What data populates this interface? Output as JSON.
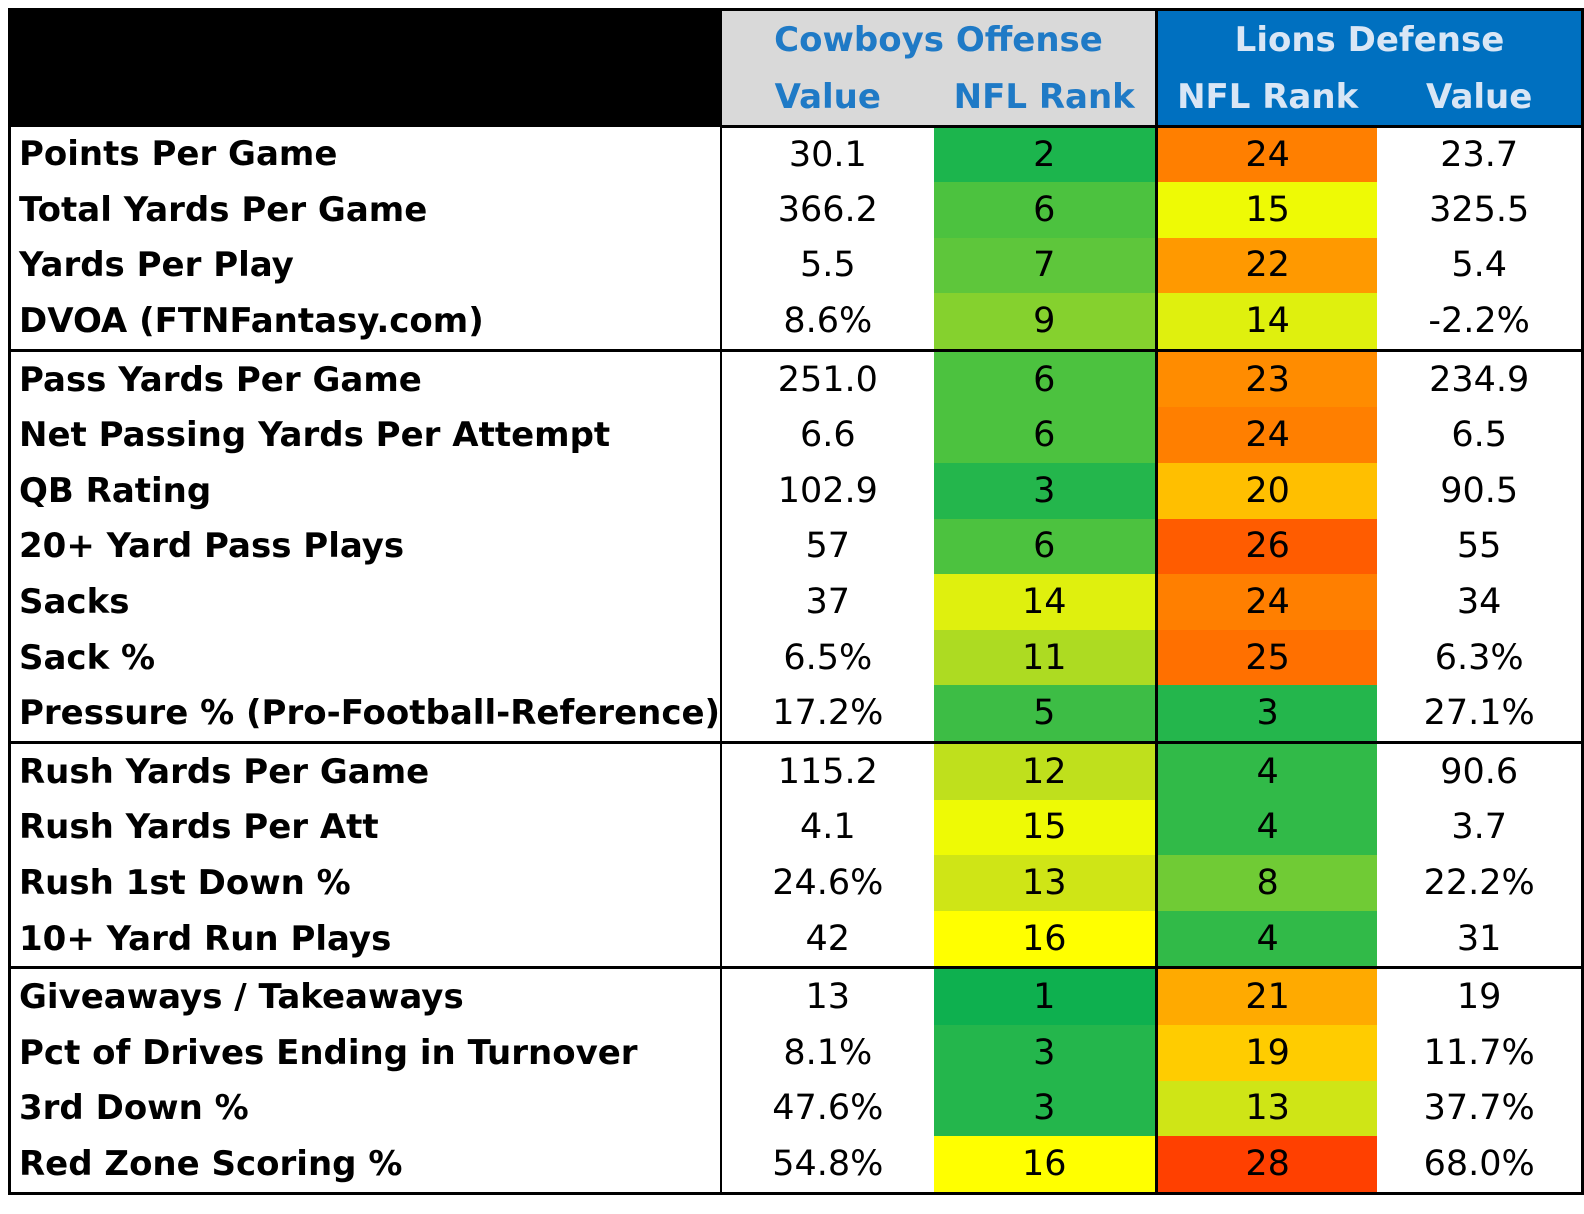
{
  "chart_data": {
    "type": "table",
    "header": {
      "offense_group": "Cowboys Offense",
      "defense_group": "Lions Defense",
      "off_value": "Value",
      "off_rank": "NFL Rank",
      "def_rank": "NFL Rank",
      "def_value": "Value"
    },
    "sections": [
      {
        "rows": [
          {
            "metric": "Points Per Game",
            "off_value": "30.1",
            "off_rank": 2,
            "def_rank": 24,
            "def_value": "23.7"
          },
          {
            "metric": "Total Yards Per Game",
            "off_value": "366.2",
            "off_rank": 6,
            "def_rank": 15,
            "def_value": "325.5"
          },
          {
            "metric": "Yards Per Play",
            "off_value": "5.5",
            "off_rank": 7,
            "def_rank": 22,
            "def_value": "5.4"
          },
          {
            "metric": "DVOA (FTNFantasy.com)",
            "off_value": "8.6%",
            "off_rank": 9,
            "def_rank": 14,
            "def_value": "-2.2%"
          }
        ]
      },
      {
        "rows": [
          {
            "metric": "Pass Yards Per Game",
            "off_value": "251.0",
            "off_rank": 6,
            "def_rank": 23,
            "def_value": "234.9"
          },
          {
            "metric": "Net Passing Yards Per Attempt",
            "off_value": "6.6",
            "off_rank": 6,
            "def_rank": 24,
            "def_value": "6.5"
          },
          {
            "metric": "QB Rating",
            "off_value": "102.9",
            "off_rank": 3,
            "def_rank": 20,
            "def_value": "90.5"
          },
          {
            "metric": "20+ Yard Pass Plays",
            "off_value": "57",
            "off_rank": 6,
            "def_rank": 26,
            "def_value": "55"
          },
          {
            "metric": "Sacks",
            "off_value": "37",
            "off_rank": 14,
            "def_rank": 24,
            "def_value": "34"
          },
          {
            "metric": "Sack %",
            "off_value": "6.5%",
            "off_rank": 11,
            "def_rank": 25,
            "def_value": "6.3%"
          },
          {
            "metric": "Pressure % (Pro-Football-Reference)",
            "off_value": "17.2%",
            "off_rank": 5,
            "def_rank": 3,
            "def_value": "27.1%"
          }
        ]
      },
      {
        "rows": [
          {
            "metric": "Rush Yards Per Game",
            "off_value": "115.2",
            "off_rank": 12,
            "def_rank": 4,
            "def_value": "90.6"
          },
          {
            "metric": "Rush Yards Per Att",
            "off_value": "4.1",
            "off_rank": 15,
            "def_rank": 4,
            "def_value": "3.7"
          },
          {
            "metric": "Rush 1st Down %",
            "off_value": "24.6%",
            "off_rank": 13,
            "def_rank": 8,
            "def_value": "22.2%"
          },
          {
            "metric": "10+ Yard Run Plays",
            "off_value": "42",
            "off_rank": 16,
            "def_rank": 4,
            "def_value": "31"
          }
        ]
      },
      {
        "rows": [
          {
            "metric": "Giveaways / Takeaways",
            "off_value": "13",
            "off_rank": 1,
            "def_rank": 21,
            "def_value": "19"
          },
          {
            "metric": "Pct of Drives Ending in Turnover",
            "off_value": "8.1%",
            "off_rank": 3,
            "def_rank": 19,
            "def_value": "11.7%"
          },
          {
            "metric": "3rd Down %",
            "off_value": "47.6%",
            "off_rank": 3,
            "def_rank": 13,
            "def_value": "37.7%"
          },
          {
            "metric": "Red Zone Scoring %",
            "off_value": "54.8%",
            "off_rank": 16,
            "def_rank": 28,
            "def_value": "68.0%"
          }
        ]
      }
    ],
    "rank_color_scale": {
      "1": "#0eb04f",
      "2": "#1cb54d",
      "3": "#24b64c",
      "4": "#31ba48",
      "5": "#3dbd45",
      "6": "#4cc23f",
      "7": "#5ec63b",
      "8": "#70cb35",
      "9": "#85d12e",
      "10": "#99d629",
      "11": "#addb22",
      "12": "#bfe01c",
      "13": "#cfe516",
      "14": "#dff00e",
      "15": "#eefa05",
      "16": "#ffff00",
      "19": "#ffcc00",
      "20": "#ffbf00",
      "21": "#ffaa00",
      "22": "#ff9900",
      "23": "#ff8c00",
      "24": "#ff7f00",
      "25": "#ff7000",
      "26": "#ff5c00",
      "28": "#ff4000"
    }
  }
}
